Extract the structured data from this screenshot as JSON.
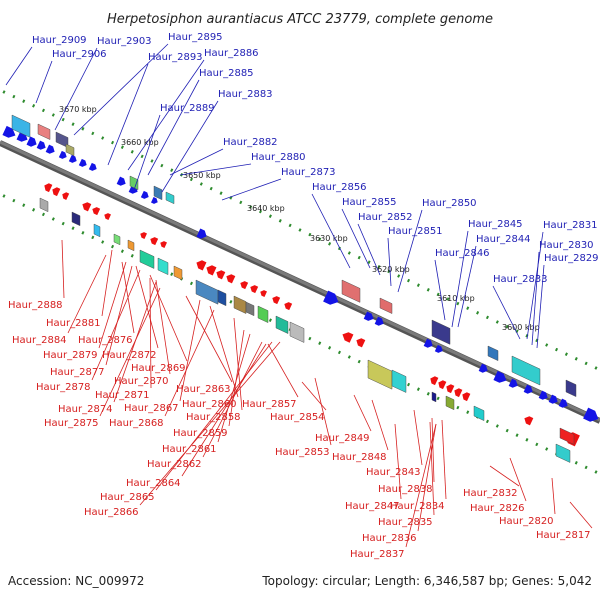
{
  "title": "Herpetosiphon aurantiacus ATCC 23779, complete genome",
  "footer": {
    "accession": "Accession: NC_009972",
    "info": "Topology: circular; Length: 6,346,587 bp; Genes: 5,042"
  },
  "colors": {
    "forward_labels": "#1f1fb4",
    "reverse_labels": "#d62020",
    "forward_arrows": "#1414e6",
    "reverse_arrows": "#ee1111",
    "backbone": "#7a7a7a",
    "tick_marks": "#2e8b2e"
  },
  "ticks": [
    "3670 kbp",
    "3660 kbp",
    "3650 kbp",
    "3640 kbp",
    "3630 kbp",
    "3620 kbp",
    "3610 kbp",
    "3600 kbp"
  ],
  "forward_labels": [
    "Haur_2909",
    "Haur_2906",
    "Haur_2903",
    "Haur_2895",
    "Haur_2893",
    "Haur_2886",
    "Haur_2885",
    "Haur_2889",
    "Haur_2883",
    "Haur_2882",
    "Haur_2880",
    "Haur_2873",
    "Haur_2856",
    "Haur_2855",
    "Haur_2852",
    "Haur_2851",
    "Haur_2850",
    "Haur_2846",
    "Haur_2845",
    "Haur_2844",
    "Haur_2833",
    "Haur_2831",
    "Haur_2830",
    "Haur_2829"
  ],
  "reverse_labels": [
    "Haur_2888",
    "Haur_2881",
    "Haur_2884",
    "Haur_2876",
    "Haur_2879",
    "Haur_2872",
    "Haur_2877",
    "Haur_2869",
    "Haur_2878",
    "Haur_2870",
    "Haur_2871",
    "Haur_2863",
    "Haur_2874",
    "Haur_2867",
    "Haur_2860",
    "Haur_2857",
    "Haur_2875",
    "Haur_2868",
    "Haur_2858",
    "Haur_2854",
    "Haur_2859",
    "Haur_2849",
    "Haur_2861",
    "Haur_2853",
    "Haur_2848",
    "Haur_2862",
    "Haur_2843",
    "Haur_2864",
    "Haur_2838",
    "Haur_2832",
    "Haur_2865",
    "Haur_2847",
    "Haur_2834",
    "Haur_2826",
    "Haur_2866",
    "Haur_2835",
    "Haur_2820",
    "Haur_2836",
    "Haur_2817",
    "Haur_2837"
  ]
}
